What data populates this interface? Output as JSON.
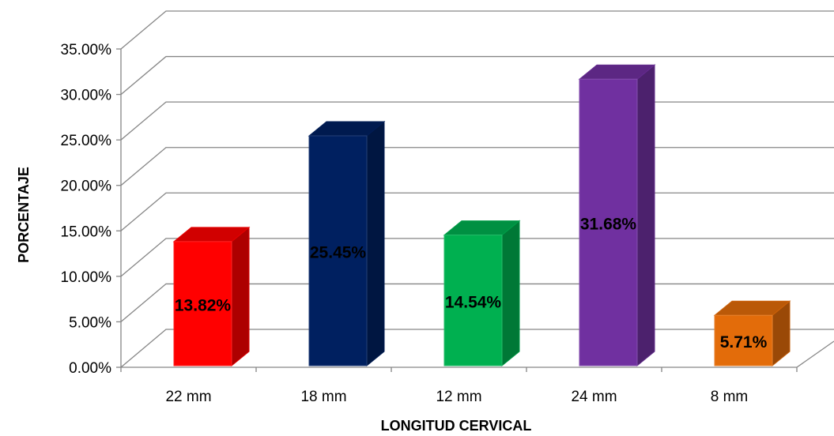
{
  "chart_data": {
    "type": "bar",
    "categories": [
      "22 mm",
      "18 mm",
      "12 mm",
      "24 mm",
      "8 mm"
    ],
    "values": [
      13.82,
      25.45,
      14.54,
      31.68,
      5.71
    ],
    "data_labels": [
      "13.82%",
      "25.45%",
      "14.54%",
      "31.68%",
      "5.71%"
    ],
    "bar_colors": [
      "#ff0000",
      "#002060",
      "#00b050",
      "#7030a0",
      "#e36c0a"
    ],
    "xlabel": "LONGITUD CERVICAL",
    "ylabel": "PORCENTAJE",
    "ylim": [
      0,
      35
    ],
    "yticks": [
      "0.00%",
      "5.00%",
      "10.00%",
      "15.00%",
      "20.00%",
      "25.00%",
      "30.00%",
      "35.00%"
    ],
    "grid": true,
    "legend": "none"
  }
}
